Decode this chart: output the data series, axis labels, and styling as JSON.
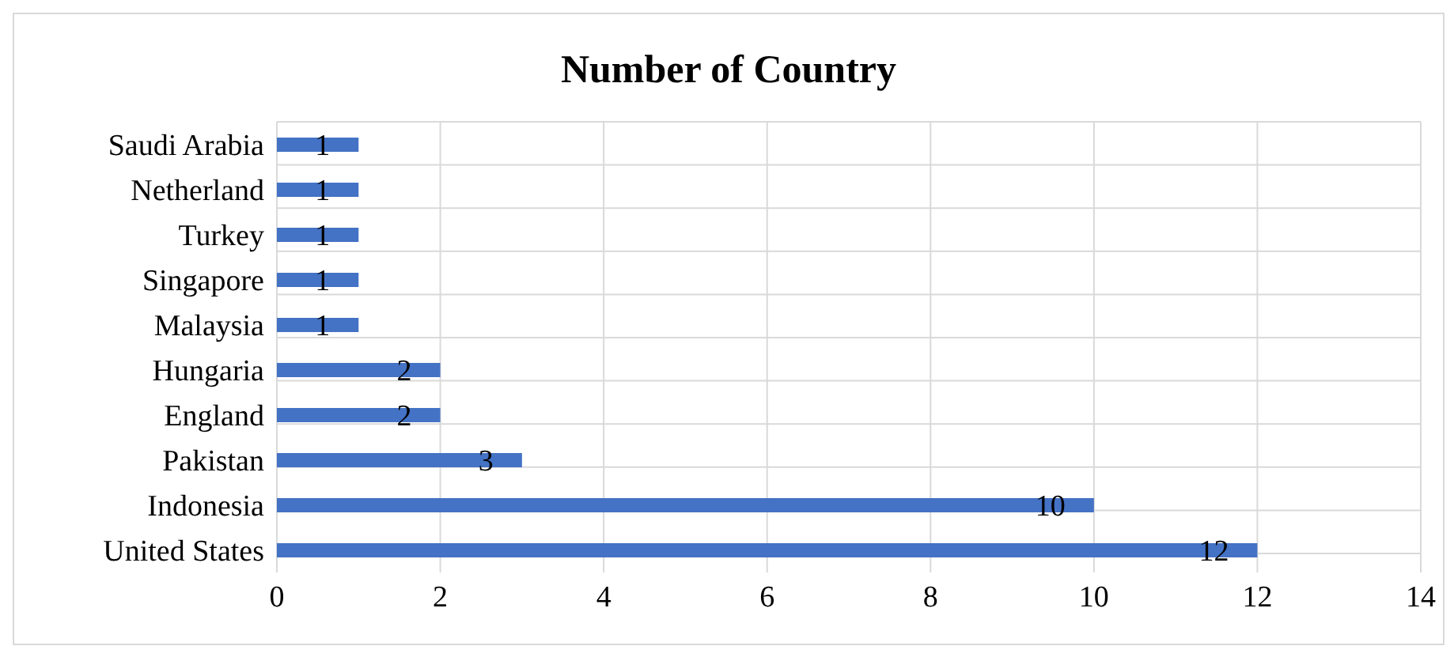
{
  "chart_data": {
    "type": "bar",
    "orientation": "horizontal",
    "title": "Number of Country",
    "categories": [
      "Saudi Arabia",
      "Netherland",
      "Turkey",
      "Singapore",
      "Malaysia",
      "Hungaria",
      "England",
      "Pakistan",
      "Indonesia",
      "United States"
    ],
    "values": [
      1,
      1,
      1,
      1,
      1,
      2,
      2,
      3,
      10,
      12
    ],
    "color": "#4472c4",
    "xlim": [
      0,
      14
    ],
    "xticks": [
      0,
      2,
      4,
      6,
      8,
      10,
      12,
      14
    ],
    "grid": true,
    "data_labels": true
  }
}
